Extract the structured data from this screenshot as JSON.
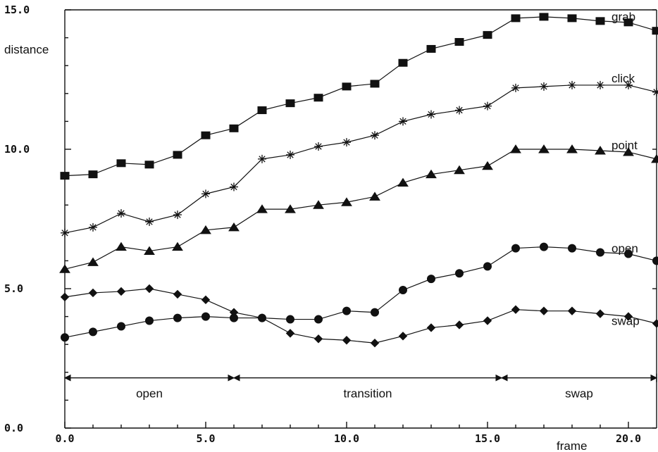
{
  "chart_data": {
    "type": "line",
    "xlabel": "frame",
    "ylabel": "distance",
    "xlim": [
      0,
      21
    ],
    "ylim": [
      0,
      15
    ],
    "x_ticks": [
      "0.0",
      "5.0",
      "10.0",
      "15.0",
      "20.0"
    ],
    "y_ticks": [
      "0.0",
      "5.0",
      "10.0",
      "15.0"
    ],
    "grid": false,
    "x": [
      0,
      1,
      2,
      3,
      4,
      5,
      6,
      7,
      8,
      9,
      10,
      11,
      12,
      13,
      14,
      15,
      16,
      17,
      18,
      19,
      20,
      21
    ],
    "series": [
      {
        "name": "grab",
        "marker": "square",
        "values": [
          9.05,
          9.1,
          9.5,
          9.45,
          9.8,
          10.5,
          10.75,
          11.4,
          11.65,
          11.85,
          12.25,
          12.35,
          13.1,
          13.6,
          13.85,
          14.1,
          14.7,
          14.75,
          14.7,
          14.6,
          14.55,
          14.25
        ]
      },
      {
        "name": "click",
        "marker": "asterisk",
        "values": [
          7.0,
          7.2,
          7.7,
          7.4,
          7.65,
          8.4,
          8.65,
          9.65,
          9.8,
          10.1,
          10.25,
          10.5,
          11.0,
          11.25,
          11.4,
          11.55,
          12.2,
          12.25,
          12.3,
          12.3,
          12.3,
          12.05
        ]
      },
      {
        "name": "point",
        "marker": "triangle",
        "values": [
          5.7,
          5.95,
          6.5,
          6.35,
          6.5,
          7.1,
          7.2,
          7.85,
          7.85,
          8.0,
          8.1,
          8.3,
          8.8,
          9.1,
          9.25,
          9.4,
          10.0,
          10.0,
          10.0,
          9.95,
          9.9,
          9.65
        ]
      },
      {
        "name": "open",
        "marker": "circle",
        "values": [
          3.25,
          3.45,
          3.65,
          3.85,
          3.95,
          4.0,
          3.95,
          3.95,
          3.9,
          3.9,
          4.2,
          4.15,
          4.95,
          5.35,
          5.55,
          5.8,
          6.45,
          6.5,
          6.45,
          6.3,
          6.25,
          6.0
        ]
      },
      {
        "name": "swap",
        "marker": "diamond",
        "values": [
          4.7,
          4.85,
          4.9,
          5.0,
          4.8,
          4.6,
          4.15,
          3.95,
          3.4,
          3.2,
          3.15,
          3.05,
          3.3,
          3.6,
          3.7,
          3.85,
          4.25,
          4.2,
          4.2,
          4.1,
          4.0,
          3.75
        ]
      }
    ],
    "phases": [
      {
        "label": "open",
        "start": 0,
        "end": 6
      },
      {
        "label": "transition",
        "start": 6,
        "end": 15.5
      },
      {
        "label": "swap",
        "start": 15.5,
        "end": 21
      }
    ],
    "phase_level": 1.8
  }
}
